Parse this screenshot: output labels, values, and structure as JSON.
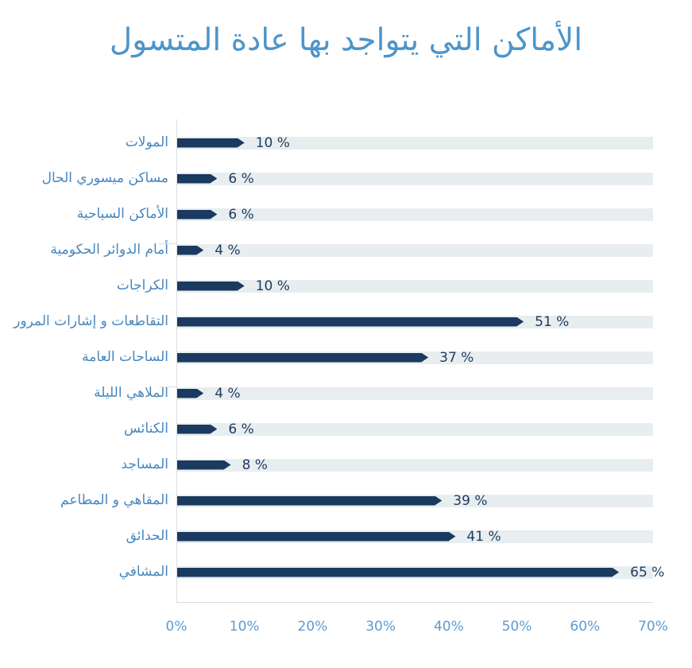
{
  "title": "الأماكن التي يتواجد بها عادة المتسول",
  "colors": {
    "title_blue": "#4d95ca",
    "category_label_blue": "#4787bf",
    "bar_navy": "#1b3a5f",
    "track_gray": "#e8eef0",
    "value_label_navy": "#1e3a5f",
    "axis_line_gray": "#d9dee1",
    "tick_label_blue": "#5b9bd5"
  },
  "chart_data": {
    "type": "bar",
    "orientation": "horizontal",
    "title": "الأماكن التي يتواجد بها عادة المتسول",
    "categories": [
      "المولات",
      "مساكن ميسوري الحال",
      "الأماكن السياحية",
      "أمام الدوائر الحكومية",
      "الكراجات",
      "التقاطعات و إشارات المرور",
      "الساحات العامة",
      "الملاهي الليلة",
      "الكنائس",
      "المساجد",
      "المقاهي و المطاعم",
      "الحدائق",
      "المشافي"
    ],
    "values": [
      10,
      6,
      6,
      4,
      10,
      51,
      37,
      4,
      6,
      8,
      39,
      41,
      65
    ],
    "value_labels": [
      "10 %",
      "6 %",
      "6 %",
      "4 %",
      "10 %",
      "51 %",
      "37 %",
      "4 %",
      "6 %",
      "8 %",
      "39 %",
      "41 %",
      "65 %"
    ],
    "leader_line_rows": [
      3,
      7
    ],
    "xlabel": "",
    "ylabel": "",
    "xlim": [
      0,
      70
    ],
    "x_ticks": [
      "0%",
      "10%",
      "20%",
      "30%",
      "40%",
      "50%",
      "60%",
      "70%"
    ],
    "grid": false,
    "legend": false
  }
}
